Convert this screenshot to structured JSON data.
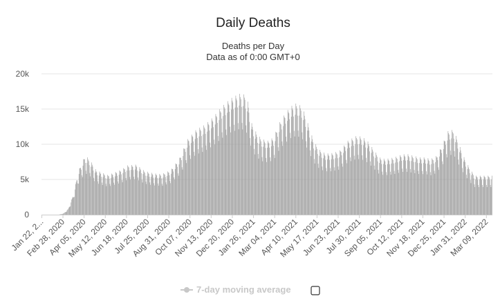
{
  "chart_data": {
    "type": "bar",
    "title": "Daily Deaths",
    "subtitle_lines": [
      "Deaths per Day",
      "Data as of 0:00 GMT+0"
    ],
    "xlabel": "",
    "ylabel": "",
    "ylim": [
      0,
      20000
    ],
    "yticks": [
      0,
      5000,
      10000,
      15000,
      20000
    ],
    "ytick_labels": [
      "0",
      "5k",
      "10k",
      "15k",
      "20k"
    ],
    "grid": true,
    "x_start": "2020-01-22",
    "x_end": "2022-03-19",
    "xtick_labels": [
      "Jan 22, 2...",
      "Feb 28, 2020",
      "Apr 05, 2020",
      "May 12, 2020",
      "Jun 18, 2020",
      "Jul 25, 2020",
      "Aug 31, 2020",
      "Oct 07, 2020",
      "Nov 13, 2020",
      "Dec 20, 2020",
      "Jan 26, 2021",
      "Mar 04, 2021",
      "Apr 10, 2021",
      "May 17, 2021",
      "Jun 23, 2021",
      "Jul 30, 2021",
      "Sep 05, 2021",
      "Oct 12, 2021",
      "Nov 18, 2021",
      "Dec 25, 2021",
      "Jan 31, 2022",
      "Mar 09, 2022"
    ],
    "weekly_trend": {
      "days_from_start": [
        0,
        30,
        38,
        46,
        55,
        64,
        70,
        75,
        80,
        85,
        95,
        105,
        115,
        120,
        130,
        140,
        150,
        165,
        180,
        195,
        210,
        225,
        240,
        255,
        270,
        285,
        300,
        315,
        330,
        345,
        355,
        360,
        367,
        372,
        377,
        385,
        395,
        405,
        415,
        425,
        435,
        445,
        455,
        465,
        475,
        485,
        495,
        505,
        520,
        535,
        550,
        560,
        570,
        580,
        590,
        600,
        610,
        620,
        630,
        640,
        650,
        660,
        670,
        680,
        690,
        700,
        710,
        720,
        727,
        735,
        742,
        750,
        757
      ],
      "values": [
        0,
        0,
        150,
        700,
        2500,
        5500,
        6500,
        7300,
        7200,
        6800,
        5600,
        5300,
        5000,
        5100,
        5400,
        5700,
        6200,
        6300,
        5500,
        5200,
        5100,
        5600,
        7000,
        9500,
        10700,
        11300,
        12300,
        13600,
        14600,
        15200,
        15100,
        14200,
        11500,
        10700,
        10100,
        9500,
        9300,
        9700,
        11500,
        12700,
        13600,
        14000,
        13600,
        11500,
        9300,
        8200,
        7700,
        7700,
        8000,
        9300,
        9900,
        9800,
        9200,
        8200,
        7200,
        7000,
        7100,
        7300,
        7600,
        7600,
        7400,
        7200,
        7200,
        7000,
        7400,
        8800,
        10500,
        10700,
        9300,
        7700,
        6600,
        5600,
        4900
      ]
    },
    "weekly_pattern": [
      0.86,
      0.8,
      1.02,
      1.13,
      1.1,
      1.08,
      1.01
    ],
    "series": [
      {
        "name": "7-day moving average",
        "visible": false
      }
    ]
  },
  "legend": {
    "label": "7-day moving average",
    "checkbox_checked": false
  },
  "colors": {
    "bar": "#9a9a9a",
    "grid": "#e6e6e6",
    "axis": "#cccccc",
    "legend_inactive": "#c8c8c8"
  }
}
